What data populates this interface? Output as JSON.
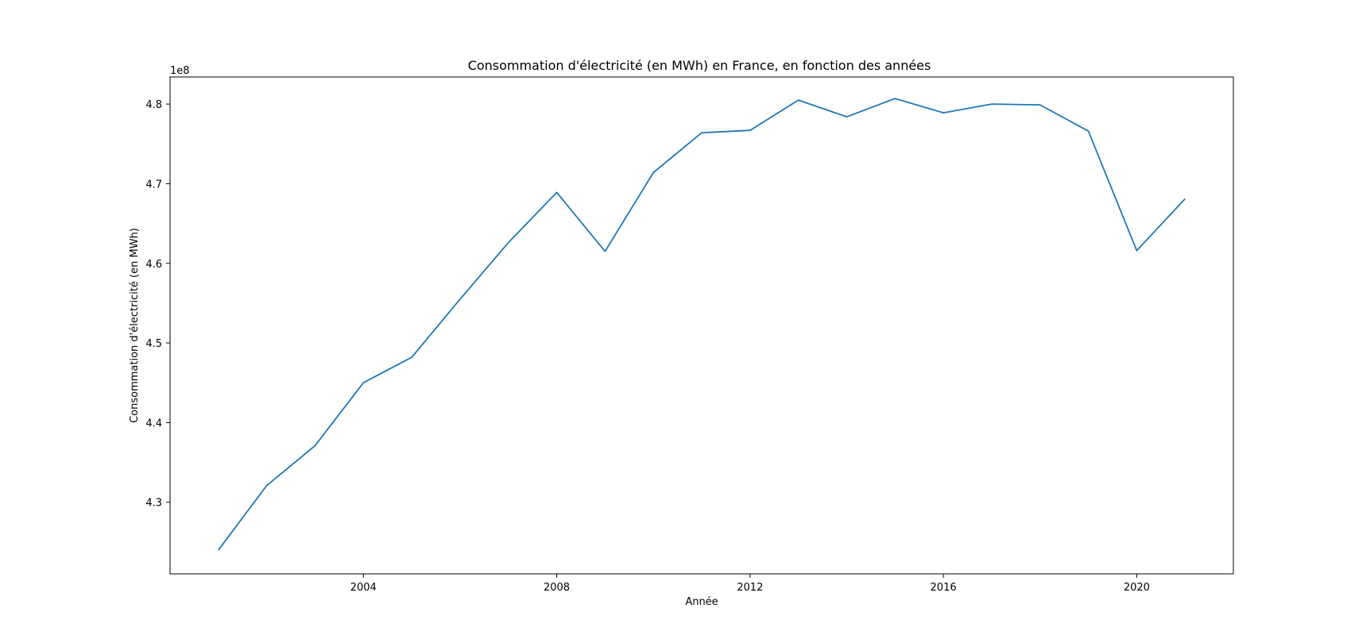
{
  "chart_data": {
    "type": "line",
    "title": "Consommation d'électricité (en MWh) en France, en fonction des années",
    "xlabel": "Année",
    "ylabel": "Consommation d'électricité (en MWh)",
    "y_offset_label": "1e8",
    "x": [
      2001,
      2002,
      2003,
      2004,
      2005,
      2006,
      2007,
      2008,
      2009,
      2010,
      2011,
      2012,
      2013,
      2014,
      2015,
      2016,
      2017,
      2018,
      2019,
      2020,
      2021
    ],
    "series": [
      {
        "values": [
          4.24,
          4.321,
          4.371,
          4.45,
          4.482,
          4.555,
          4.626,
          4.689,
          4.615,
          4.714,
          4.764,
          4.767,
          4.805,
          4.784,
          4.807,
          4.789,
          4.8,
          4.799,
          4.766,
          4.616,
          4.681
        ],
        "color": "#1f77b4"
      }
    ],
    "xlim": [
      2000.0,
      2022.0
    ],
    "ylim": [
      4.21,
      4.834
    ],
    "x_ticks": [
      "2004",
      "2008",
      "2012",
      "2016",
      "2020"
    ],
    "y_ticks": [
      "4.3",
      "4.4",
      "4.5",
      "4.6",
      "4.7",
      "4.8"
    ],
    "grid": false,
    "legend": "none"
  }
}
